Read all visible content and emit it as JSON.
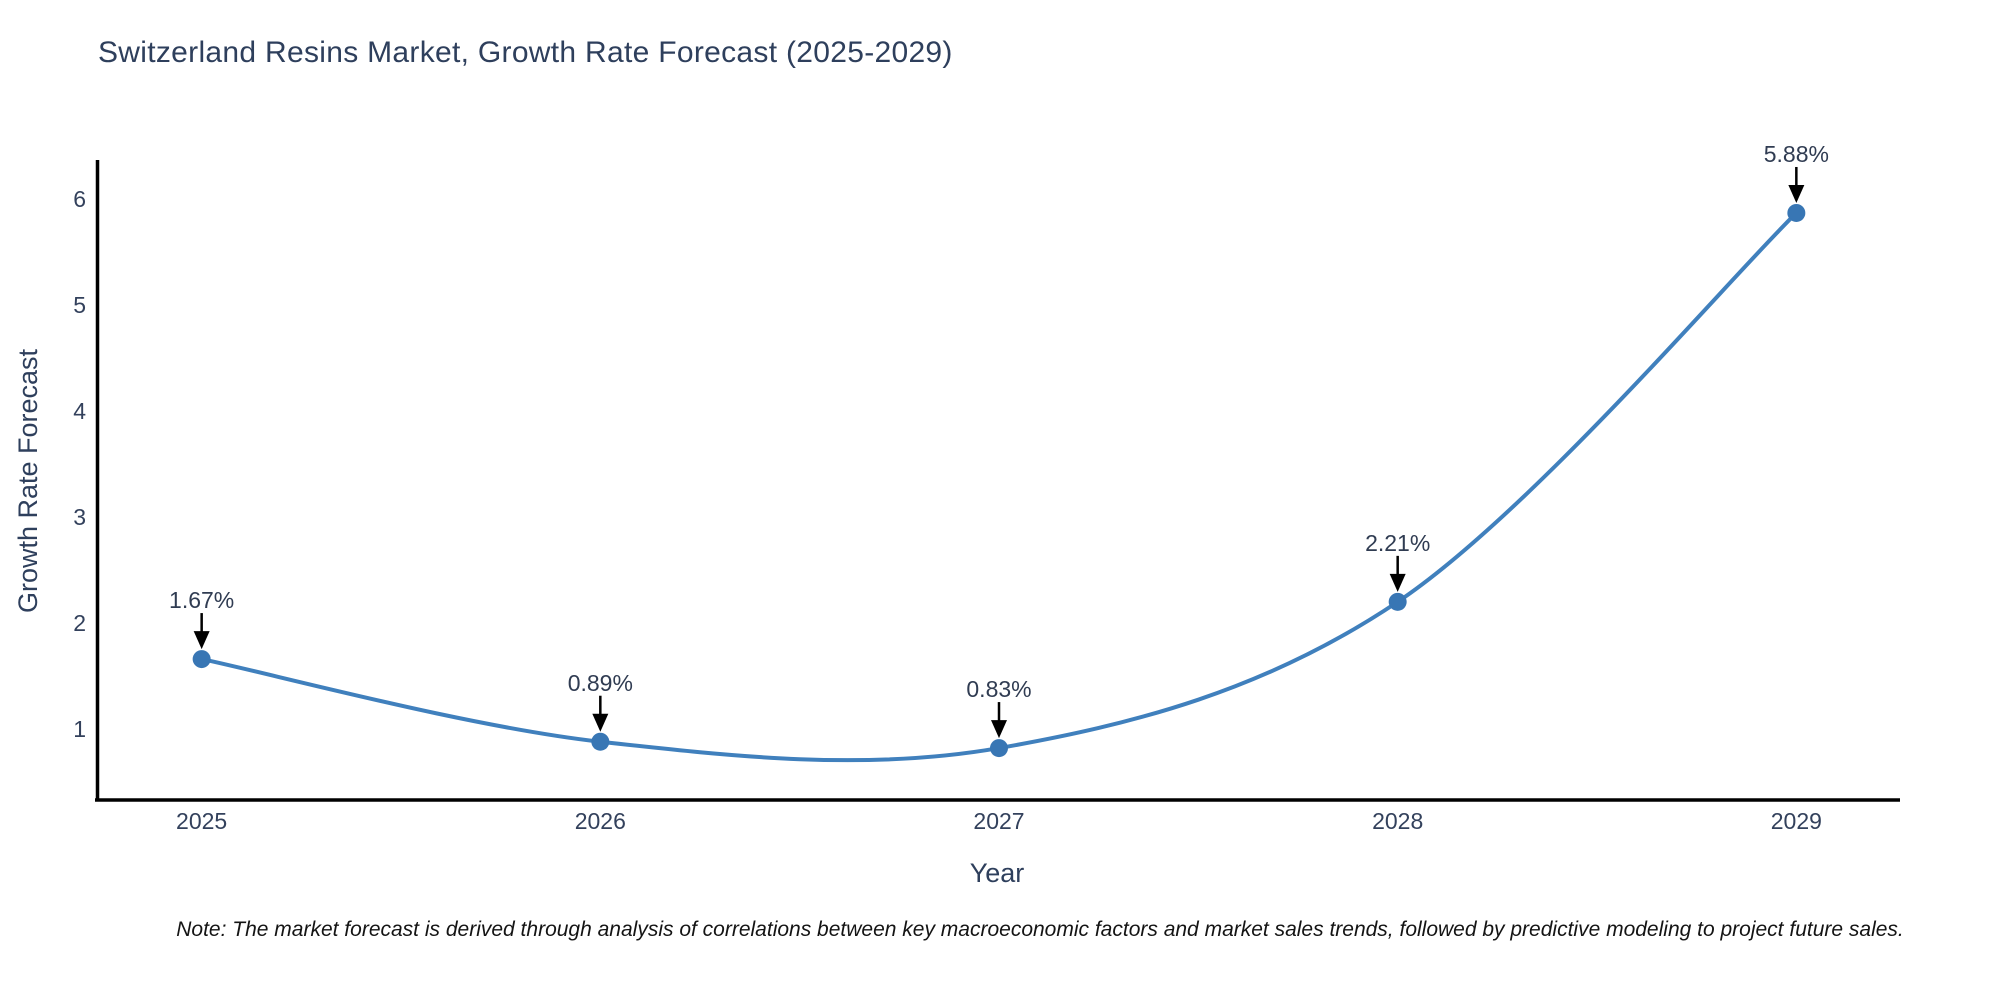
{
  "chart_data": {
    "type": "line",
    "title": "Switzerland Resins Market, Growth Rate Forecast (2025-2029)",
    "xlabel": "Year",
    "ylabel": "Growth Rate Forecast",
    "x": [
      2025,
      2026,
      2027,
      2028,
      2029
    ],
    "series": [
      {
        "name": "Growth Rate Forecast",
        "values": [
          1.67,
          0.89,
          0.83,
          2.21,
          5.88
        ],
        "point_labels": [
          "1.67%",
          "0.89%",
          "0.83%",
          "2.21%",
          "5.88%"
        ]
      }
    ],
    "x_tick_labels": [
      "2025",
      "2026",
      "2027",
      "2028",
      "2029"
    ],
    "y_ticks": [
      1,
      2,
      3,
      4,
      5,
      6
    ],
    "xlim": [
      2024.74,
      2029.26
    ],
    "ylim": [
      0.34,
      6.38
    ],
    "grid": false,
    "legend": "none",
    "line_shape": "spline",
    "marker": "circle",
    "colors": {
      "line": "#4080bd",
      "marker": "#3876b4",
      "axis": "#000000",
      "text": "#2e3f5c",
      "annotation_arrow": "#000000"
    }
  },
  "note": "Note: The market forecast is derived through analysis of correlations between key macroeconomic factors and market sales trends, followed by predictive modeling to project future sales."
}
